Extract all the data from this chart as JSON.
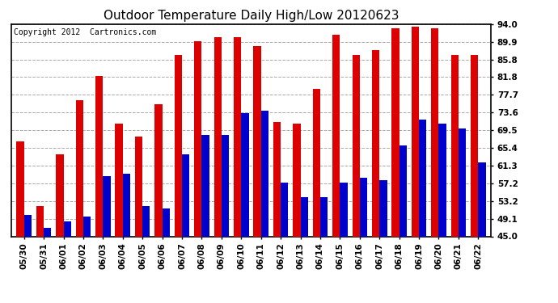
{
  "title": "Outdoor Temperature Daily High/Low 20120623",
  "copyright": "Copyright 2012  Cartronics.com",
  "dates": [
    "05/30",
    "05/31",
    "06/01",
    "06/02",
    "06/03",
    "06/04",
    "06/05",
    "06/06",
    "06/07",
    "06/08",
    "06/09",
    "06/10",
    "06/11",
    "06/12",
    "06/13",
    "06/14",
    "06/15",
    "06/16",
    "06/17",
    "06/18",
    "06/19",
    "06/20",
    "06/21",
    "06/22"
  ],
  "highs": [
    67.0,
    52.0,
    64.0,
    76.5,
    82.0,
    71.0,
    68.0,
    75.5,
    87.0,
    90.0,
    91.0,
    91.0,
    89.0,
    71.5,
    71.0,
    79.0,
    91.5,
    87.0,
    88.0,
    93.0,
    93.5,
    93.0,
    87.0,
    87.0
  ],
  "lows": [
    50.0,
    47.0,
    48.5,
    49.5,
    59.0,
    59.5,
    52.0,
    51.5,
    64.0,
    68.5,
    68.5,
    73.5,
    74.0,
    57.5,
    54.0,
    54.0,
    57.5,
    58.5,
    58.0,
    66.0,
    72.0,
    71.0,
    70.0,
    62.0
  ],
  "high_color": "#dd0000",
  "low_color": "#0000cc",
  "background_color": "#ffffff",
  "plot_bg_color": "#ffffff",
  "grid_color": "#aaaaaa",
  "ymin": 45.0,
  "ymax": 94.0,
  "yticks": [
    45.0,
    49.1,
    53.2,
    57.2,
    61.3,
    65.4,
    69.5,
    73.6,
    77.7,
    81.8,
    85.8,
    89.9,
    94.0
  ],
  "bar_width": 0.38,
  "title_fontsize": 11,
  "tick_fontsize": 7.5,
  "copyright_fontsize": 7
}
